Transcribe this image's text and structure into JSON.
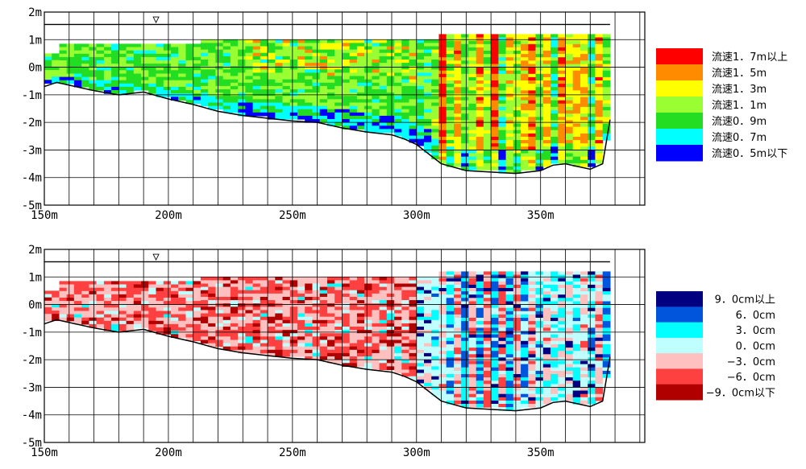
{
  "chart_data": [
    {
      "type": "heatmap",
      "name_label": "",
      "x_ticks": [
        "150m",
        "200m",
        "250m",
        "300m",
        "350m"
      ],
      "y_ticks": [
        "2m",
        "1m",
        "0m",
        "-1m",
        "-2m",
        "-3m",
        "-4m",
        "-5m"
      ],
      "xlim": [
        150,
        392
      ],
      "ylim": [
        -5,
        2
      ],
      "water_level_symbol": "▽",
      "water_level_x": 195,
      "water_level": 1.55,
      "grid": true,
      "legend_position": "right",
      "legend": [
        {
          "label": "流速1．7m以上",
          "color": "#ff0000"
        },
        {
          "label": "流速1．5m",
          "color": "#ff8c00"
        },
        {
          "label": "流速1．3m",
          "color": "#ffff00"
        },
        {
          "label": "流速1．1m",
          "color": "#99ff33"
        },
        {
          "label": "流速0．9m",
          "color": "#22dd22"
        },
        {
          "label": "流速0．7m",
          "color": "#00ffff"
        },
        {
          "label": "流速0．5m以下",
          "color": "#0000ff"
        }
      ],
      "bed_profile": {
        "x": [
          150,
          155,
          160,
          170,
          180,
          190,
          200,
          210,
          220,
          230,
          240,
          250,
          260,
          270,
          280,
          290,
          295,
          300,
          305,
          310,
          320,
          330,
          340,
          350,
          355,
          360,
          365,
          370,
          375,
          378
        ],
        "y": [
          -0.7,
          -0.55,
          -0.65,
          -0.85,
          -1.0,
          -0.9,
          -1.15,
          -1.35,
          -1.6,
          -1.75,
          -1.85,
          -1.95,
          -2.0,
          -2.2,
          -2.35,
          -2.45,
          -2.6,
          -2.8,
          -3.15,
          -3.5,
          -3.75,
          -3.8,
          -3.85,
          -3.75,
          -3.55,
          -3.5,
          -3.6,
          -3.7,
          -3.5,
          -1.9
        ]
      }
    },
    {
      "type": "heatmap",
      "name_label": "",
      "x_ticks": [
        "150m",
        "200m",
        "250m",
        "300m",
        "350m"
      ],
      "y_ticks": [
        "2m",
        "1m",
        "0m",
        "-1m",
        "-2m",
        "-3m",
        "-4m",
        "-5m"
      ],
      "xlim": [
        150,
        392
      ],
      "ylim": [
        -5,
        2
      ],
      "water_level_symbol": "▽",
      "water_level_x": 195,
      "water_level": 1.55,
      "grid": true,
      "legend_position": "right",
      "legend": [
        {
          "label": "9．0cm以上",
          "color": "#000080"
        },
        {
          "label": "6．0cm",
          "color": "#0055dd"
        },
        {
          "label": "3．0cm",
          "color": "#00ffff"
        },
        {
          "label": "0．0cm",
          "color": "#c0ffff"
        },
        {
          "label": "−3．0cm",
          "color": "#ffc0c0"
        },
        {
          "label": "−6．0cm",
          "color": "#ff4040"
        },
        {
          "label": "−9．0cm以下",
          "color": "#b00000"
        }
      ],
      "bed_profile": {
        "x": [
          150,
          155,
          160,
          170,
          180,
          190,
          200,
          210,
          220,
          230,
          240,
          250,
          260,
          270,
          280,
          290,
          295,
          300,
          305,
          310,
          320,
          330,
          340,
          350,
          355,
          360,
          365,
          370,
          375,
          378
        ],
        "y": [
          -0.7,
          -0.55,
          -0.65,
          -0.85,
          -1.0,
          -0.9,
          -1.15,
          -1.35,
          -1.6,
          -1.75,
          -1.85,
          -1.95,
          -2.0,
          -2.2,
          -2.35,
          -2.45,
          -2.6,
          -2.8,
          -3.15,
          -3.5,
          -3.75,
          -3.8,
          -3.85,
          -3.75,
          -3.55,
          -3.5,
          -3.6,
          -3.7,
          -3.5,
          -1.9
        ]
      }
    }
  ]
}
